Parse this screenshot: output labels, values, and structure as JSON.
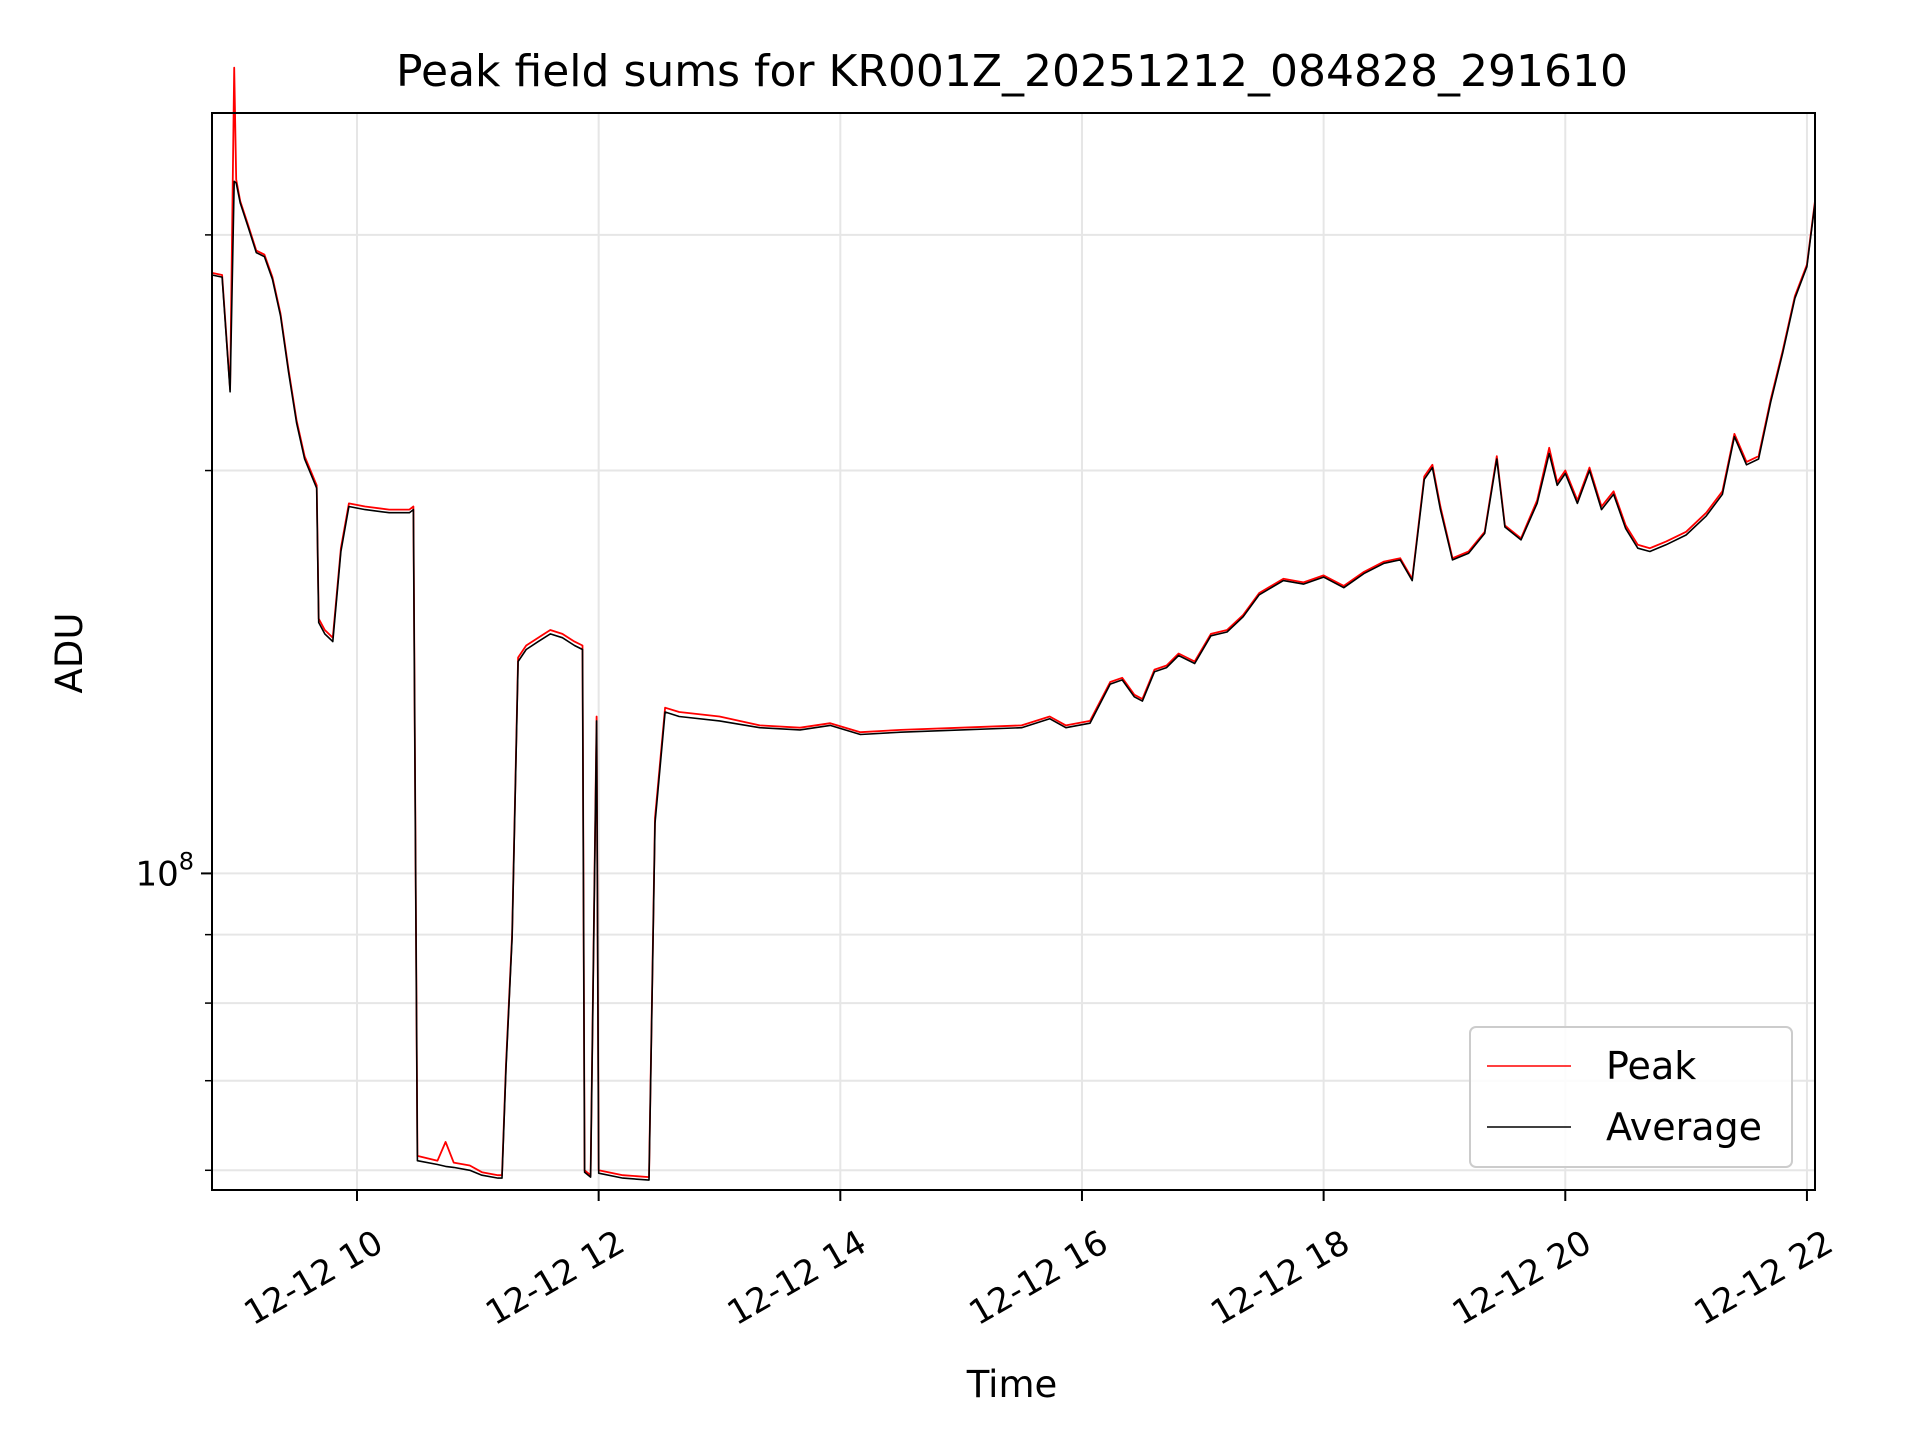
{
  "chart_data": {
    "type": "line",
    "title": "Peak field sums for KR001Z_20251212_084828_291610",
    "xlabel": "Time",
    "ylabel": "ADU",
    "x_range": [
      "2025-12-12 08:48",
      "2025-12-12 22:04"
    ],
    "ylim": [
      58000000,
      370000000
    ],
    "y_scale": "log",
    "grid": true,
    "legend_position": "lower-right",
    "x_ticks": [
      {
        "x": "2025-12-12 10:00",
        "label": "12-12 10"
      },
      {
        "x": "2025-12-12 12:00",
        "label": "12-12 12"
      },
      {
        "x": "2025-12-12 14:00",
        "label": "12-12 14"
      },
      {
        "x": "2025-12-12 16:00",
        "label": "12-12 16"
      },
      {
        "x": "2025-12-12 18:00",
        "label": "12-12 18"
      },
      {
        "x": "2025-12-12 20:00",
        "label": "12-12 20"
      },
      {
        "x": "2025-12-12 22:00",
        "label": "12-12 22"
      }
    ],
    "y_major_ticks": [
      {
        "y": 100000000,
        "base": "10",
        "exp": "8"
      }
    ],
    "y_minor_ticks": [
      60000000,
      70000000,
      80000000,
      90000000,
      200000000,
      300000000
    ],
    "series": [
      {
        "name": "Peak",
        "color": "#ff0000",
        "points": [
          [
            "2025-12-12 08:48",
            281000000
          ],
          [
            "2025-12-12 08:53",
            280000000
          ],
          [
            "2025-12-12 08:57",
            230000000
          ],
          [
            "2025-12-12 08:59",
            400000000
          ],
          [
            "2025-12-12 09:00",
            330000000
          ],
          [
            "2025-12-12 09:02",
            318000000
          ],
          [
            "2025-12-12 09:06",
            305000000
          ],
          [
            "2025-12-12 09:10",
            292000000
          ],
          [
            "2025-12-12 09:14",
            290000000
          ],
          [
            "2025-12-12 09:18",
            279000000
          ],
          [
            "2025-12-12 09:22",
            262000000
          ],
          [
            "2025-12-12 09:26",
            238000000
          ],
          [
            "2025-12-12 09:30",
            218000000
          ],
          [
            "2025-12-12 09:34",
            205000000
          ],
          [
            "2025-12-12 09:40",
            195000000
          ],
          [
            "2025-12-12 09:41",
            155000000
          ],
          [
            "2025-12-12 09:44",
            152000000
          ],
          [
            "2025-12-12 09:48",
            150000000
          ],
          [
            "2025-12-12 09:52",
            175000000
          ],
          [
            "2025-12-12 09:56",
            189000000
          ],
          [
            "2025-12-12 10:04",
            188000000
          ],
          [
            "2025-12-12 10:16",
            187000000
          ],
          [
            "2025-12-12 10:26",
            187000000
          ],
          [
            "2025-12-12 10:28",
            188000000
          ],
          [
            "2025-12-12 10:30",
            61500000
          ],
          [
            "2025-12-12 10:40",
            61000000
          ],
          [
            "2025-12-12 10:44",
            63000000
          ],
          [
            "2025-12-12 10:48",
            60800000
          ],
          [
            "2025-12-12 10:56",
            60500000
          ],
          [
            "2025-12-12 11:02",
            59800000
          ],
          [
            "2025-12-12 11:10",
            59500000
          ],
          [
            "2025-12-12 11:12",
            59500000
          ],
          [
            "2025-12-12 11:14",
            72000000
          ],
          [
            "2025-12-12 11:17",
            90000000
          ],
          [
            "2025-12-12 11:20",
            145000000
          ],
          [
            "2025-12-12 11:24",
            148000000
          ],
          [
            "2025-12-12 11:30",
            150000000
          ],
          [
            "2025-12-12 11:36",
            152000000
          ],
          [
            "2025-12-12 11:42",
            151000000
          ],
          [
            "2025-12-12 11:48",
            149000000
          ],
          [
            "2025-12-12 11:52",
            148000000
          ],
          [
            "2025-12-12 11:53",
            60000000
          ],
          [
            "2025-12-12 11:56",
            59500000
          ],
          [
            "2025-12-12 11:59",
            131000000
          ],
          [
            "2025-12-12 12:00",
            60000000
          ],
          [
            "2025-12-12 12:12",
            59500000
          ],
          [
            "2025-12-12 12:25",
            59300000
          ],
          [
            "2025-12-12 12:28",
            110000000
          ],
          [
            "2025-12-12 12:33",
            133000000
          ],
          [
            "2025-12-12 12:40",
            132000000
          ],
          [
            "2025-12-12 13:00",
            131000000
          ],
          [
            "2025-12-12 13:20",
            129000000
          ],
          [
            "2025-12-12 13:40",
            128500000
          ],
          [
            "2025-12-12 13:55",
            129500000
          ],
          [
            "2025-12-12 14:10",
            127500000
          ],
          [
            "2025-12-12 14:30",
            128000000
          ],
          [
            "2025-12-12 15:00",
            128500000
          ],
          [
            "2025-12-12 15:30",
            129000000
          ],
          [
            "2025-12-12 15:44",
            131000000
          ],
          [
            "2025-12-12 15:52",
            129000000
          ],
          [
            "2025-12-12 16:04",
            130000000
          ],
          [
            "2025-12-12 16:14",
            139000000
          ],
          [
            "2025-12-12 16:20",
            140000000
          ],
          [
            "2025-12-12 16:26",
            136000000
          ],
          [
            "2025-12-12 16:30",
            135000000
          ],
          [
            "2025-12-12 16:36",
            142000000
          ],
          [
            "2025-12-12 16:42",
            143000000
          ],
          [
            "2025-12-12 16:48",
            146000000
          ],
          [
            "2025-12-12 16:56",
            144000000
          ],
          [
            "2025-12-12 17:04",
            151000000
          ],
          [
            "2025-12-12 17:12",
            152000000
          ],
          [
            "2025-12-12 17:20",
            156000000
          ],
          [
            "2025-12-12 17:28",
            162000000
          ],
          [
            "2025-12-12 17:40",
            166000000
          ],
          [
            "2025-12-12 17:50",
            165000000
          ],
          [
            "2025-12-12 18:00",
            167000000
          ],
          [
            "2025-12-12 18:10",
            164000000
          ],
          [
            "2025-12-12 18:20",
            168000000
          ],
          [
            "2025-12-12 18:30",
            171000000
          ],
          [
            "2025-12-12 18:38",
            172000000
          ],
          [
            "2025-12-12 18:44",
            166000000
          ],
          [
            "2025-12-12 18:50",
            198000000
          ],
          [
            "2025-12-12 18:54",
            202000000
          ],
          [
            "2025-12-12 18:58",
            188000000
          ],
          [
            "2025-12-12 19:04",
            172000000
          ],
          [
            "2025-12-12 19:12",
            174000000
          ],
          [
            "2025-12-12 19:20",
            180000000
          ],
          [
            "2025-12-12 19:26",
            205000000
          ],
          [
            "2025-12-12 19:30",
            182000000
          ],
          [
            "2025-12-12 19:38",
            178000000
          ],
          [
            "2025-12-12 19:46",
            190000000
          ],
          [
            "2025-12-12 19:52",
            208000000
          ],
          [
            "2025-12-12 19:56",
            196000000
          ],
          [
            "2025-12-12 20:00",
            200000000
          ],
          [
            "2025-12-12 20:06",
            190000000
          ],
          [
            "2025-12-12 20:12",
            201000000
          ],
          [
            "2025-12-12 20:18",
            188000000
          ],
          [
            "2025-12-12 20:24",
            193000000
          ],
          [
            "2025-12-12 20:30",
            182000000
          ],
          [
            "2025-12-12 20:36",
            176000000
          ],
          [
            "2025-12-12 20:42",
            175000000
          ],
          [
            "2025-12-12 20:50",
            177000000
          ],
          [
            "2025-12-12 21:00",
            180000000
          ],
          [
            "2025-12-12 21:10",
            186000000
          ],
          [
            "2025-12-12 21:18",
            193000000
          ],
          [
            "2025-12-12 21:24",
            213000000
          ],
          [
            "2025-12-12 21:30",
            203000000
          ],
          [
            "2025-12-12 21:36",
            205000000
          ],
          [
            "2025-12-12 21:42",
            226000000
          ],
          [
            "2025-12-12 21:48",
            246000000
          ],
          [
            "2025-12-12 21:54",
            270000000
          ],
          [
            "2025-12-12 22:00",
            285000000
          ],
          [
            "2025-12-12 22:04",
            318000000
          ]
        ]
      },
      {
        "name": "Average",
        "color": "#000000",
        "points": [
          [
            "2025-12-12 08:48",
            280000000
          ],
          [
            "2025-12-12 08:53",
            279000000
          ],
          [
            "2025-12-12 08:57",
            229000000
          ],
          [
            "2025-12-12 08:59",
            329000000
          ],
          [
            "2025-12-12 09:00",
            328000000
          ],
          [
            "2025-12-12 09:02",
            317000000
          ],
          [
            "2025-12-12 09:06",
            304000000
          ],
          [
            "2025-12-12 09:10",
            291000000
          ],
          [
            "2025-12-12 09:14",
            289000000
          ],
          [
            "2025-12-12 09:18",
            278000000
          ],
          [
            "2025-12-12 09:22",
            261000000
          ],
          [
            "2025-12-12 09:26",
            237000000
          ],
          [
            "2025-12-12 09:30",
            217000000
          ],
          [
            "2025-12-12 09:34",
            204000000
          ],
          [
            "2025-12-12 09:40",
            194000000
          ],
          [
            "2025-12-12 09:41",
            154000000
          ],
          [
            "2025-12-12 09:44",
            151000000
          ],
          [
            "2025-12-12 09:48",
            149000000
          ],
          [
            "2025-12-12 09:52",
            174000000
          ],
          [
            "2025-12-12 09:56",
            188000000
          ],
          [
            "2025-12-12 10:04",
            187000000
          ],
          [
            "2025-12-12 10:16",
            186000000
          ],
          [
            "2025-12-12 10:26",
            186000000
          ],
          [
            "2025-12-12 10:28",
            187000000
          ],
          [
            "2025-12-12 10:30",
            61000000
          ],
          [
            "2025-12-12 10:40",
            60600000
          ],
          [
            "2025-12-12 10:44",
            60400000
          ],
          [
            "2025-12-12 10:48",
            60300000
          ],
          [
            "2025-12-12 10:56",
            60000000
          ],
          [
            "2025-12-12 11:02",
            59500000
          ],
          [
            "2025-12-12 11:10",
            59200000
          ],
          [
            "2025-12-12 11:12",
            59200000
          ],
          [
            "2025-12-12 11:14",
            71500000
          ],
          [
            "2025-12-12 11:17",
            89500000
          ],
          [
            "2025-12-12 11:20",
            144000000
          ],
          [
            "2025-12-12 11:24",
            147000000
          ],
          [
            "2025-12-12 11:30",
            149000000
          ],
          [
            "2025-12-12 11:36",
            151000000
          ],
          [
            "2025-12-12 11:42",
            150000000
          ],
          [
            "2025-12-12 11:48",
            148000000
          ],
          [
            "2025-12-12 11:52",
            147000000
          ],
          [
            "2025-12-12 11:53",
            59800000
          ],
          [
            "2025-12-12 11:56",
            59300000
          ],
          [
            "2025-12-12 11:59",
            130000000
          ],
          [
            "2025-12-12 12:00",
            59700000
          ],
          [
            "2025-12-12 12:12",
            59200000
          ],
          [
            "2025-12-12 12:25",
            59000000
          ],
          [
            "2025-12-12 12:28",
            109000000
          ],
          [
            "2025-12-12 12:33",
            132000000
          ],
          [
            "2025-12-12 12:40",
            131000000
          ],
          [
            "2025-12-12 13:00",
            130000000
          ],
          [
            "2025-12-12 13:20",
            128500000
          ],
          [
            "2025-12-12 13:40",
            128000000
          ],
          [
            "2025-12-12 13:55",
            129000000
          ],
          [
            "2025-12-12 14:10",
            127000000
          ],
          [
            "2025-12-12 14:30",
            127500000
          ],
          [
            "2025-12-12 15:00",
            128000000
          ],
          [
            "2025-12-12 15:30",
            128500000
          ],
          [
            "2025-12-12 15:44",
            130500000
          ],
          [
            "2025-12-12 15:52",
            128500000
          ],
          [
            "2025-12-12 16:04",
            129500000
          ],
          [
            "2025-12-12 16:14",
            138500000
          ],
          [
            "2025-12-12 16:20",
            139500000
          ],
          [
            "2025-12-12 16:26",
            135500000
          ],
          [
            "2025-12-12 16:30",
            134500000
          ],
          [
            "2025-12-12 16:36",
            141500000
          ],
          [
            "2025-12-12 16:42",
            142500000
          ],
          [
            "2025-12-12 16:48",
            145500000
          ],
          [
            "2025-12-12 16:56",
            143500000
          ],
          [
            "2025-12-12 17:04",
            150500000
          ],
          [
            "2025-12-12 17:12",
            151500000
          ],
          [
            "2025-12-12 17:20",
            155500000
          ],
          [
            "2025-12-12 17:28",
            161500000
          ],
          [
            "2025-12-12 17:40",
            165500000
          ],
          [
            "2025-12-12 17:50",
            164500000
          ],
          [
            "2025-12-12 18:00",
            166500000
          ],
          [
            "2025-12-12 18:10",
            163500000
          ],
          [
            "2025-12-12 18:20",
            167500000
          ],
          [
            "2025-12-12 18:30",
            170500000
          ],
          [
            "2025-12-12 18:38",
            171500000
          ],
          [
            "2025-12-12 18:44",
            165500000
          ],
          [
            "2025-12-12 18:50",
            197000000
          ],
          [
            "2025-12-12 18:54",
            201000000
          ],
          [
            "2025-12-12 18:58",
            187000000
          ],
          [
            "2025-12-12 19:04",
            171500000
          ],
          [
            "2025-12-12 19:12",
            173500000
          ],
          [
            "2025-12-12 19:20",
            179500000
          ],
          [
            "2025-12-12 19:26",
            204000000
          ],
          [
            "2025-12-12 19:30",
            181500000
          ],
          [
            "2025-12-12 19:38",
            177500000
          ],
          [
            "2025-12-12 19:46",
            189000000
          ],
          [
            "2025-12-12 19:52",
            206000000
          ],
          [
            "2025-12-12 19:56",
            195000000
          ],
          [
            "2025-12-12 20:00",
            199000000
          ],
          [
            "2025-12-12 20:06",
            189000000
          ],
          [
            "2025-12-12 20:12",
            200000000
          ],
          [
            "2025-12-12 20:18",
            187000000
          ],
          [
            "2025-12-12 20:24",
            192000000
          ],
          [
            "2025-12-12 20:30",
            181000000
          ],
          [
            "2025-12-12 20:36",
            175000000
          ],
          [
            "2025-12-12 20:42",
            174000000
          ],
          [
            "2025-12-12 20:50",
            176000000
          ],
          [
            "2025-12-12 21:00",
            179000000
          ],
          [
            "2025-12-12 21:10",
            185000000
          ],
          [
            "2025-12-12 21:18",
            192000000
          ],
          [
            "2025-12-12 21:24",
            212000000
          ],
          [
            "2025-12-12 21:30",
            202000000
          ],
          [
            "2025-12-12 21:36",
            204000000
          ],
          [
            "2025-12-12 21:42",
            225000000
          ],
          [
            "2025-12-12 21:48",
            245000000
          ],
          [
            "2025-12-12 21:54",
            269000000
          ],
          [
            "2025-12-12 22:00",
            284000000
          ],
          [
            "2025-12-12 22:04",
            317000000
          ]
        ]
      }
    ]
  }
}
